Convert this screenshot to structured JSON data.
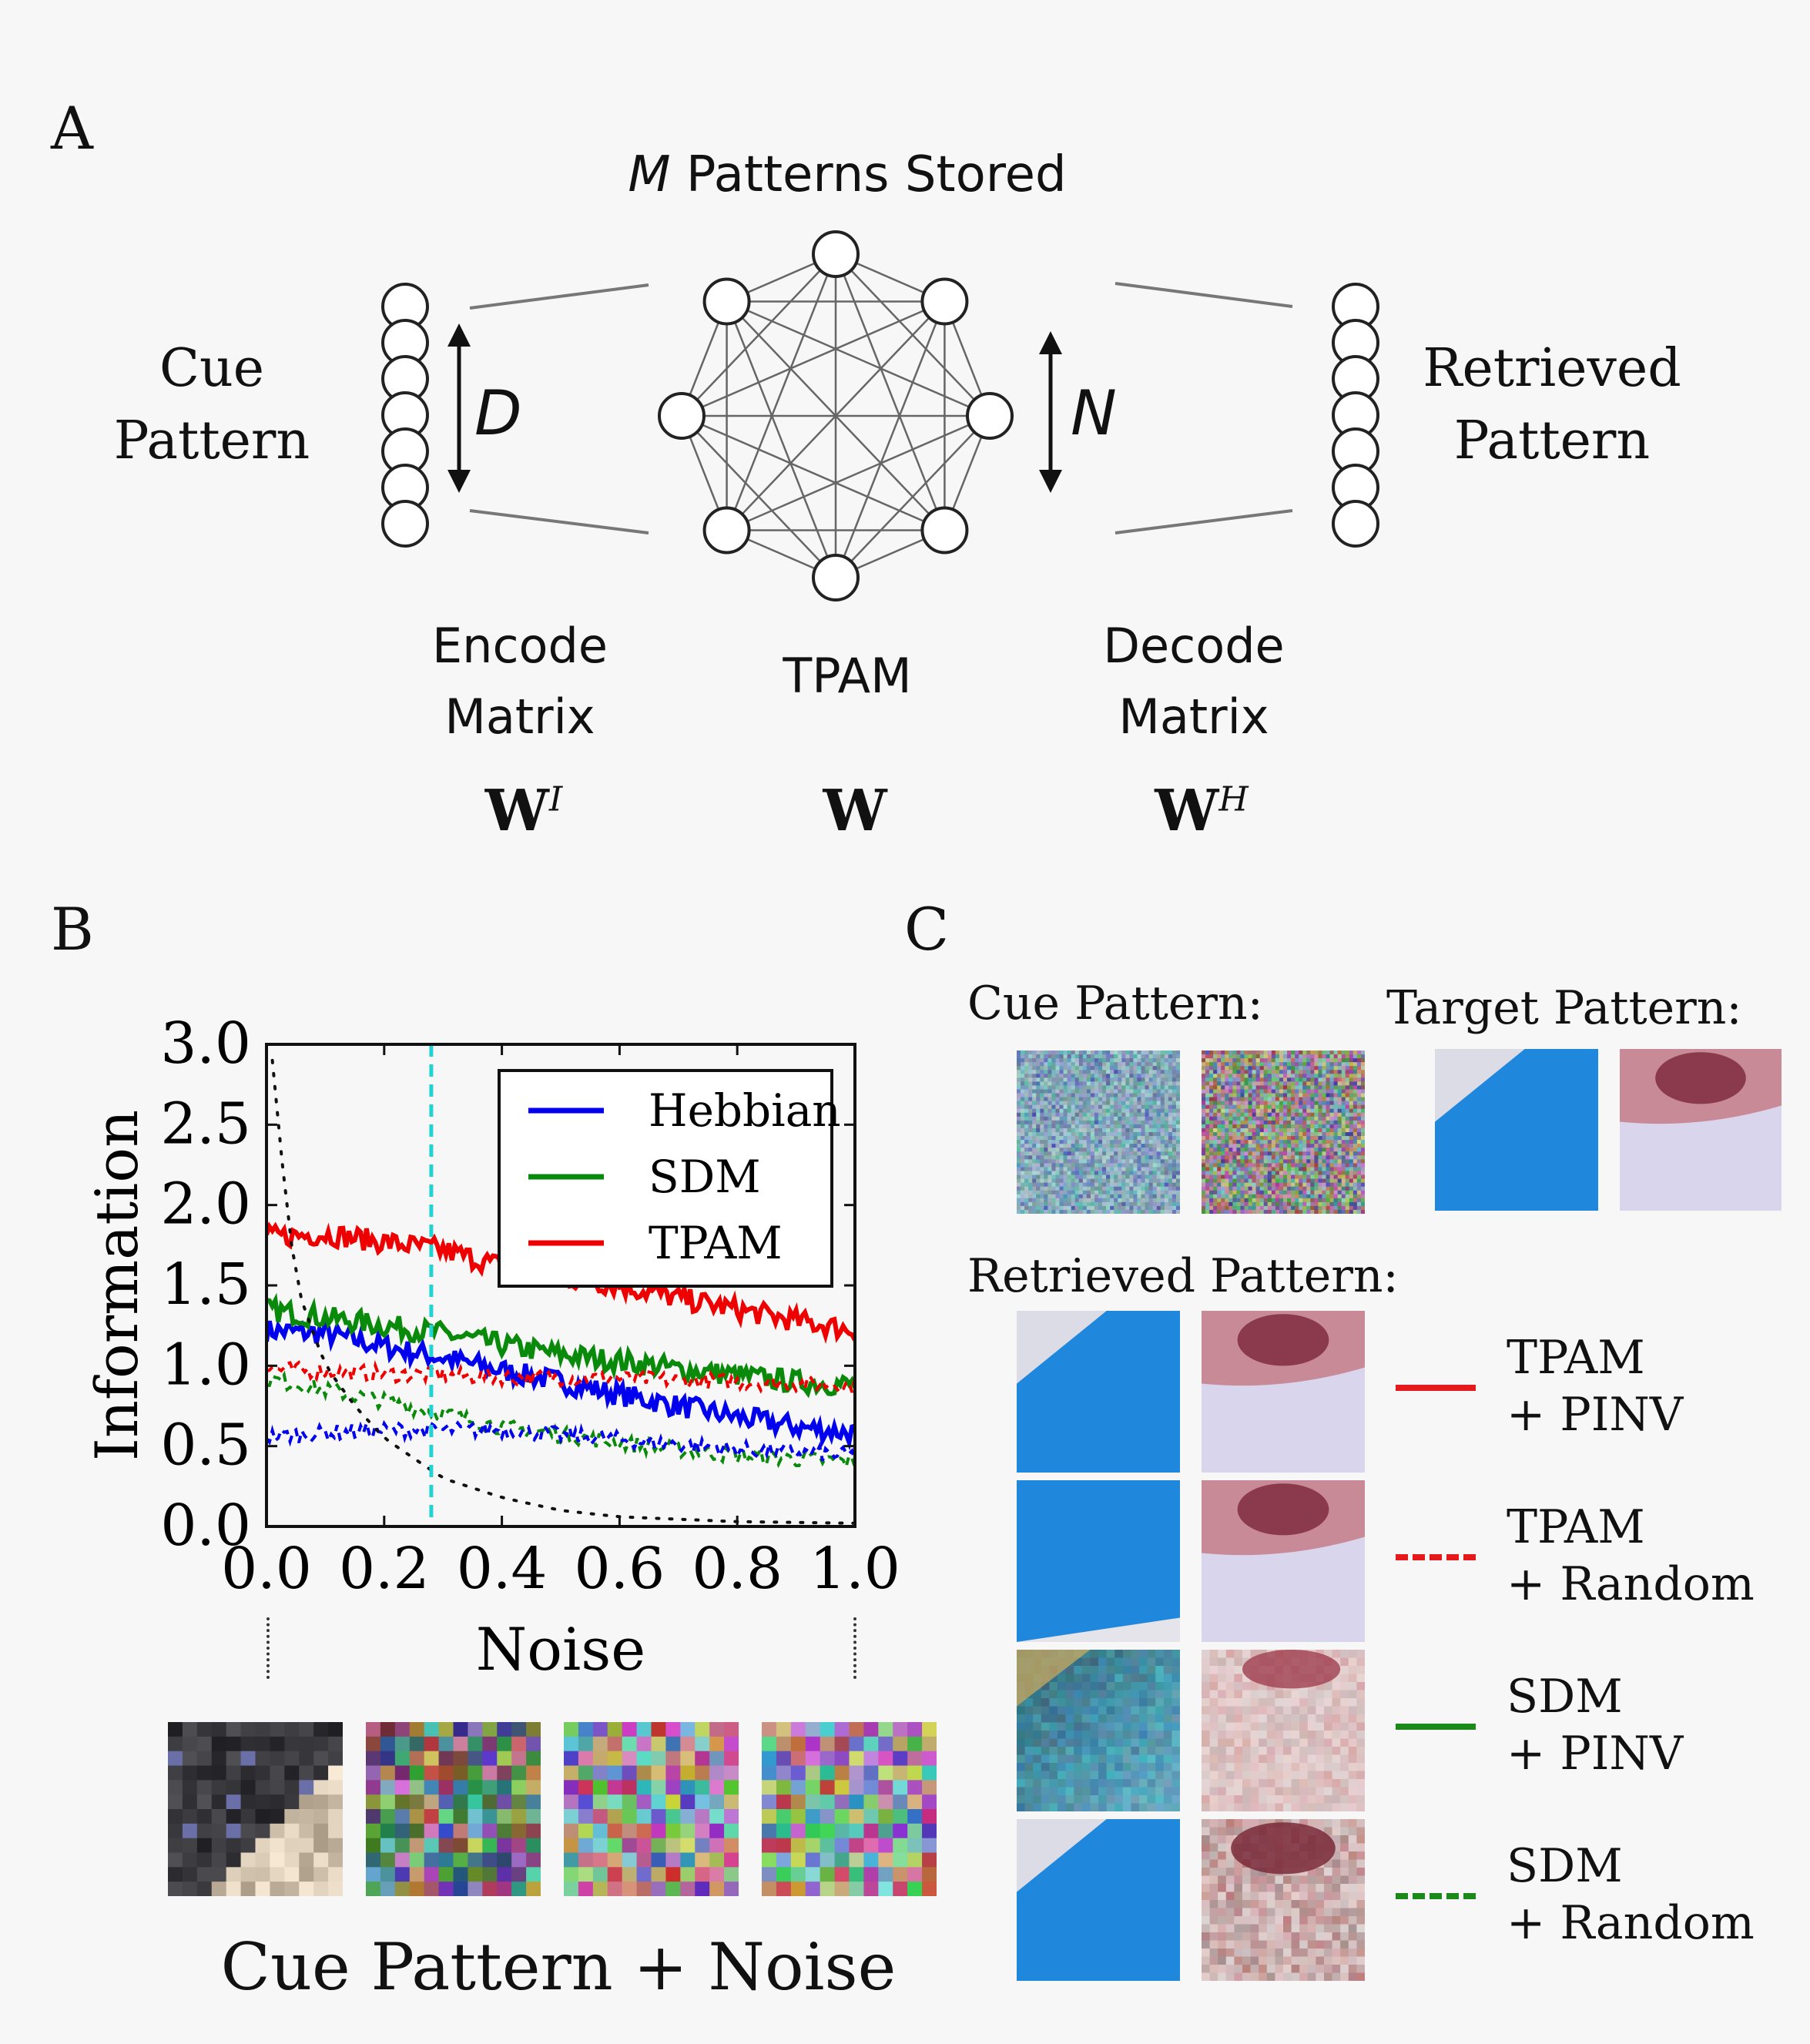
{
  "panelA": {
    "letter": "A",
    "patterns_stored_var": "M",
    "patterns_stored": "Patterns Stored",
    "cue_line1": "Cue",
    "cue_line2": "Pattern",
    "retrieved_line1": "Retrieved",
    "retrieved_line2": "Pattern",
    "dim_left": "D",
    "dim_right": "N",
    "encode_line1": "Encode",
    "encode_line2": "Matrix",
    "tpam": "TPAM",
    "decode_line1": "Decode",
    "decode_line2": "Matrix",
    "mat_encode": "W",
    "mat_encode_sup": "I",
    "mat_tpam": "W",
    "mat_decode": "W",
    "mat_decode_sup": "H"
  },
  "panelB": {
    "letter": "B",
    "cue_noise_caption": "Cue Pattern + Noise"
  },
  "panelC": {
    "letter": "C",
    "cue_header": "Cue Pattern:",
    "target_header": "Target Pattern:",
    "retrieved_header": "Retrieved Pattern:",
    "legend": [
      {
        "line1": "TPAM",
        "line2": "+ PINV",
        "color": "#e41a1c",
        "dash": false
      },
      {
        "line1": "TPAM",
        "line2": "+ Random",
        "color": "#e41a1c",
        "dash": true
      },
      {
        "line1": "SDM",
        "line2": "+ PINV",
        "color": "#1b8a1b",
        "dash": false
      },
      {
        "line1": "SDM",
        "line2": "+ Random",
        "color": "#1b8a1b",
        "dash": true
      }
    ]
  },
  "chart_data": {
    "type": "line",
    "xlabel": "Noise",
    "ylabel": "Information",
    "xlim": [
      0.0,
      1.0
    ],
    "ylim": [
      0.0,
      3.0
    ],
    "xticks": [
      "0.0",
      "0.2",
      "0.4",
      "0.6",
      "0.8",
      "1.0"
    ],
    "yticks": [
      "0.0",
      "0.5",
      "1.0",
      "1.5",
      "2.0",
      "2.5",
      "3.0"
    ],
    "vline_x": 0.28,
    "legend_position": "top-right",
    "series": [
      {
        "name": "Hebbian",
        "color": "#0000ee",
        "style": "solid",
        "x": [
          0.0,
          0.1,
          0.2,
          0.3,
          0.4,
          0.5,
          0.6,
          0.7,
          0.8,
          0.9,
          1.0
        ],
        "y": [
          1.22,
          1.2,
          1.12,
          1.05,
          0.97,
          0.9,
          0.82,
          0.75,
          0.68,
          0.62,
          0.58
        ]
      },
      {
        "name": "SDM",
        "color": "#0a8a0a",
        "style": "solid",
        "x": [
          0.0,
          0.1,
          0.2,
          0.3,
          0.4,
          0.5,
          0.6,
          0.7,
          0.8,
          0.9,
          1.0
        ],
        "y": [
          1.35,
          1.3,
          1.25,
          1.2,
          1.13,
          1.07,
          1.03,
          0.98,
          0.94,
          0.9,
          0.88
        ]
      },
      {
        "name": "TPAM",
        "color": "#ee0000",
        "style": "solid",
        "x": [
          0.0,
          0.1,
          0.2,
          0.3,
          0.4,
          0.5,
          0.6,
          0.7,
          0.8,
          0.9,
          1.0
        ],
        "y": [
          1.8,
          1.82,
          1.77,
          1.72,
          1.62,
          1.55,
          1.5,
          1.42,
          1.35,
          1.28,
          1.22
        ]
      },
      {
        "name": "",
        "color": "#ee0000",
        "style": "dashed",
        "x": [
          0.0,
          0.2,
          0.4,
          0.6,
          0.8,
          1.0
        ],
        "y": [
          0.98,
          0.95,
          0.93,
          0.92,
          0.9,
          0.88
        ]
      },
      {
        "name": "",
        "color": "#0a8a0a",
        "style": "dashed",
        "x": [
          0.0,
          0.2,
          0.4,
          0.6,
          0.8,
          1.0
        ],
        "y": [
          0.92,
          0.78,
          0.62,
          0.52,
          0.44,
          0.4
        ]
      },
      {
        "name": "",
        "color": "#0000ee",
        "style": "dashed",
        "x": [
          0.0,
          0.2,
          0.4,
          0.6,
          0.8,
          1.0
        ],
        "y": [
          0.56,
          0.6,
          0.6,
          0.54,
          0.48,
          0.44
        ]
      },
      {
        "name": "",
        "color": "#111111",
        "style": "dotted",
        "x": [
          0.01,
          0.02,
          0.04,
          0.06,
          0.1,
          0.15,
          0.2,
          0.3,
          0.4,
          0.5,
          0.6,
          0.8,
          1.0
        ],
        "y": [
          2.9,
          2.5,
          1.8,
          1.4,
          1.0,
          0.75,
          0.55,
          0.3,
          0.18,
          0.1,
          0.06,
          0.03,
          0.02
        ]
      }
    ]
  }
}
